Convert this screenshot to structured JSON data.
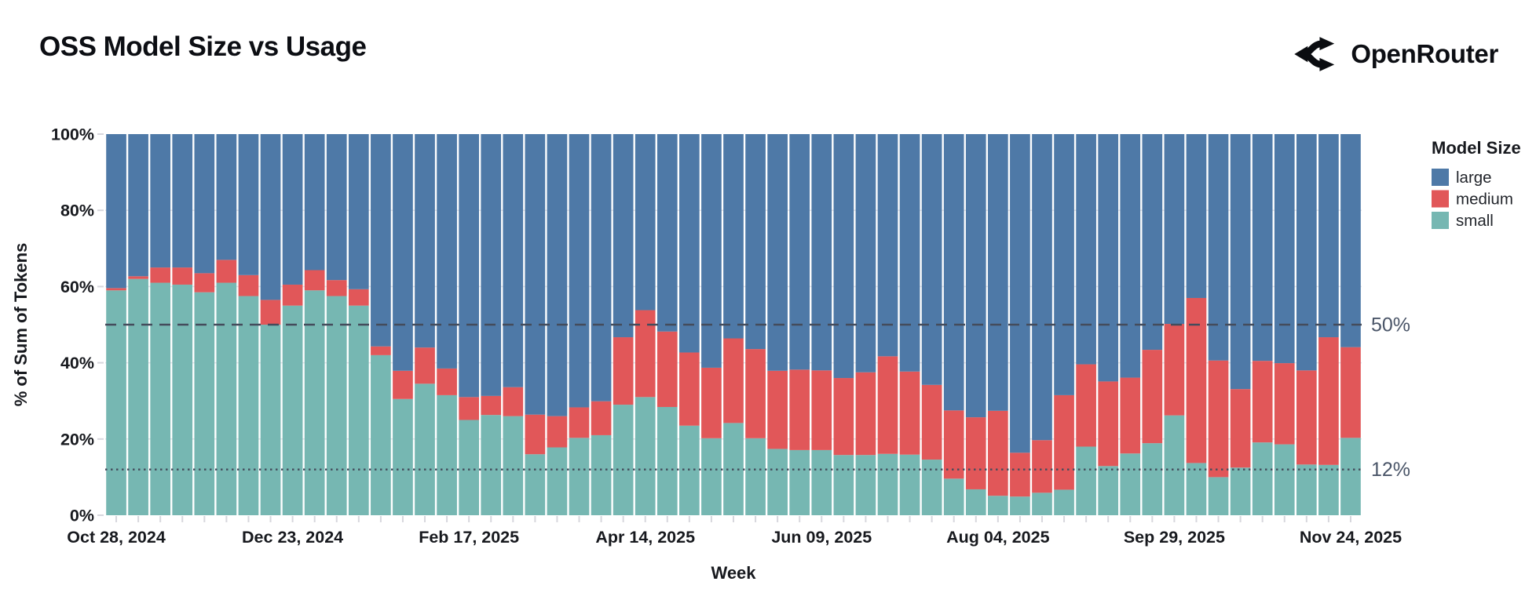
{
  "header": {
    "title": "OSS Model Size vs Usage",
    "brand": "OpenRouter"
  },
  "colors": {
    "background": "#ffffff",
    "text_primary": "#0c0e13",
    "tick_label": "#17191e",
    "grid": "#e4e4ea",
    "tick_mark": "#d7d7dd",
    "annotation_line": "#444c5c",
    "annotation_label": "#4a5568",
    "large": "#4e79a7",
    "medium": "#e15759",
    "small": "#76b7b2"
  },
  "legend": {
    "title": "Model Size",
    "items": [
      {
        "label": "large",
        "color": "#4e79a7"
      },
      {
        "label": "medium",
        "color": "#e15759"
      },
      {
        "label": "small",
        "color": "#76b7b2"
      }
    ]
  },
  "chart_data": {
    "type": "bar",
    "stacked": true,
    "normalized_percent": true,
    "title": "OSS Model Size vs Usage",
    "xlabel": "Week",
    "ylabel": "% of Sum of Tokens",
    "ylim": [
      0,
      100
    ],
    "grid": true,
    "legend_position": "right",
    "y_tick_labels": [
      "0%",
      "20%",
      "40%",
      "60%",
      "80%",
      "100%"
    ],
    "y_tick_values": [
      0,
      20,
      40,
      60,
      80,
      100
    ],
    "x_tick_label_every": 8,
    "x_tick_labels_visible": [
      "Oct 28, 2024",
      "Dec 23, 2024",
      "Feb 17, 2025",
      "Apr 14, 2025",
      "Jun 09, 2025",
      "Aug 04, 2025",
      "Sep 29, 2025",
      "Nov 24, 2025"
    ],
    "annotations": [
      {
        "label": "50%",
        "value": 50,
        "style": "dashed"
      },
      {
        "label": "12%",
        "value": 12,
        "style": "dotted"
      }
    ],
    "categories": [
      "Oct 28, 2024",
      "Nov 04, 2024",
      "Nov 11, 2024",
      "Nov 18, 2024",
      "Nov 25, 2024",
      "Dec 02, 2024",
      "Dec 09, 2024",
      "Dec 16, 2024",
      "Dec 23, 2024",
      "Dec 30, 2024",
      "Jan 06, 2025",
      "Jan 13, 2025",
      "Jan 20, 2025",
      "Jan 27, 2025",
      "Feb 03, 2025",
      "Feb 10, 2025",
      "Feb 17, 2025",
      "Feb 24, 2025",
      "Mar 03, 2025",
      "Mar 10, 2025",
      "Mar 17, 2025",
      "Mar 24, 2025",
      "Mar 31, 2025",
      "Apr 07, 2025",
      "Apr 14, 2025",
      "Apr 21, 2025",
      "Apr 28, 2025",
      "May 05, 2025",
      "May 12, 2025",
      "May 19, 2025",
      "May 26, 2025",
      "Jun 02, 2025",
      "Jun 09, 2025",
      "Jun 16, 2025",
      "Jun 23, 2025",
      "Jun 30, 2025",
      "Jul 07, 2025",
      "Jul 14, 2025",
      "Jul 21, 2025",
      "Jul 28, 2025",
      "Aug 04, 2025",
      "Aug 11, 2025",
      "Aug 18, 2025",
      "Aug 25, 2025",
      "Sep 01, 2025",
      "Sep 08, 2025",
      "Sep 15, 2025",
      "Sep 22, 2025",
      "Sep 29, 2025",
      "Oct 06, 2025",
      "Oct 13, 2025",
      "Oct 20, 2025",
      "Oct 27, 2025",
      "Nov 03, 2025",
      "Nov 10, 2025",
      "Nov 17, 2025",
      "Nov 24, 2025"
    ],
    "series": [
      {
        "name": "small",
        "color": "#76b7b2",
        "values": [
          59,
          62,
          61,
          60.5,
          58.5,
          61,
          57.5,
          50,
          55,
          59,
          57.5,
          55,
          42,
          30.5,
          34.5,
          31.5,
          25,
          26.3,
          26,
          16,
          17.8,
          20.3,
          21,
          29,
          31,
          28.4,
          23.5,
          20.2,
          24.2,
          20.2,
          17.4,
          17.1,
          17.1,
          15.8,
          15.8,
          16.1,
          15.9,
          14.6,
          9.6,
          6.8,
          5.1,
          4.9,
          5.9,
          6.7,
          18,
          12.9,
          16.2,
          18.9,
          26.2,
          13.7,
          10,
          12.5,
          19.1,
          18.6,
          13.3,
          13.2,
          20.3
        ]
      },
      {
        "name": "medium",
        "color": "#e15759",
        "values": [
          0.6,
          0.7,
          4,
          4.5,
          5,
          6,
          5.5,
          6.5,
          5.5,
          5.3,
          4.2,
          4.3,
          2.3,
          7.4,
          9.5,
          7,
          6,
          5,
          7.6,
          10.4,
          8.2,
          8,
          8.9,
          17.7,
          22.8,
          19.8,
          19.2,
          18.5,
          22.2,
          23.4,
          20.5,
          21.1,
          20.9,
          20.2,
          21.7,
          25.6,
          21.8,
          19.6,
          17.9,
          18.9,
          22.3,
          11.5,
          13.8,
          24.8,
          21.6,
          22.2,
          19.9,
          24.5,
          24,
          43.3,
          30.6,
          20.6,
          21.4,
          21.3,
          24.7,
          33.5,
          23.8
        ]
      },
      {
        "name": "large",
        "color": "#4e79a7",
        "values": [
          40.4,
          37.3,
          35,
          35,
          36.5,
          33,
          37,
          43.5,
          39.5,
          35.7,
          38.3,
          40.7,
          55.7,
          62.1,
          56,
          61.5,
          69,
          68.7,
          66.4,
          73.6,
          74,
          71.7,
          70.1,
          53.3,
          46.2,
          51.8,
          57.3,
          61.3,
          53.6,
          56.4,
          62.1,
          61.8,
          62,
          64,
          62.5,
          58.3,
          62.3,
          65.8,
          72.5,
          74.3,
          72.6,
          83.6,
          80.3,
          68.5,
          60.4,
          64.9,
          63.9,
          56.6,
          49.8,
          43,
          59.4,
          66.9,
          59.5,
          60.1,
          62,
          53.3,
          55.9
        ]
      }
    ]
  }
}
